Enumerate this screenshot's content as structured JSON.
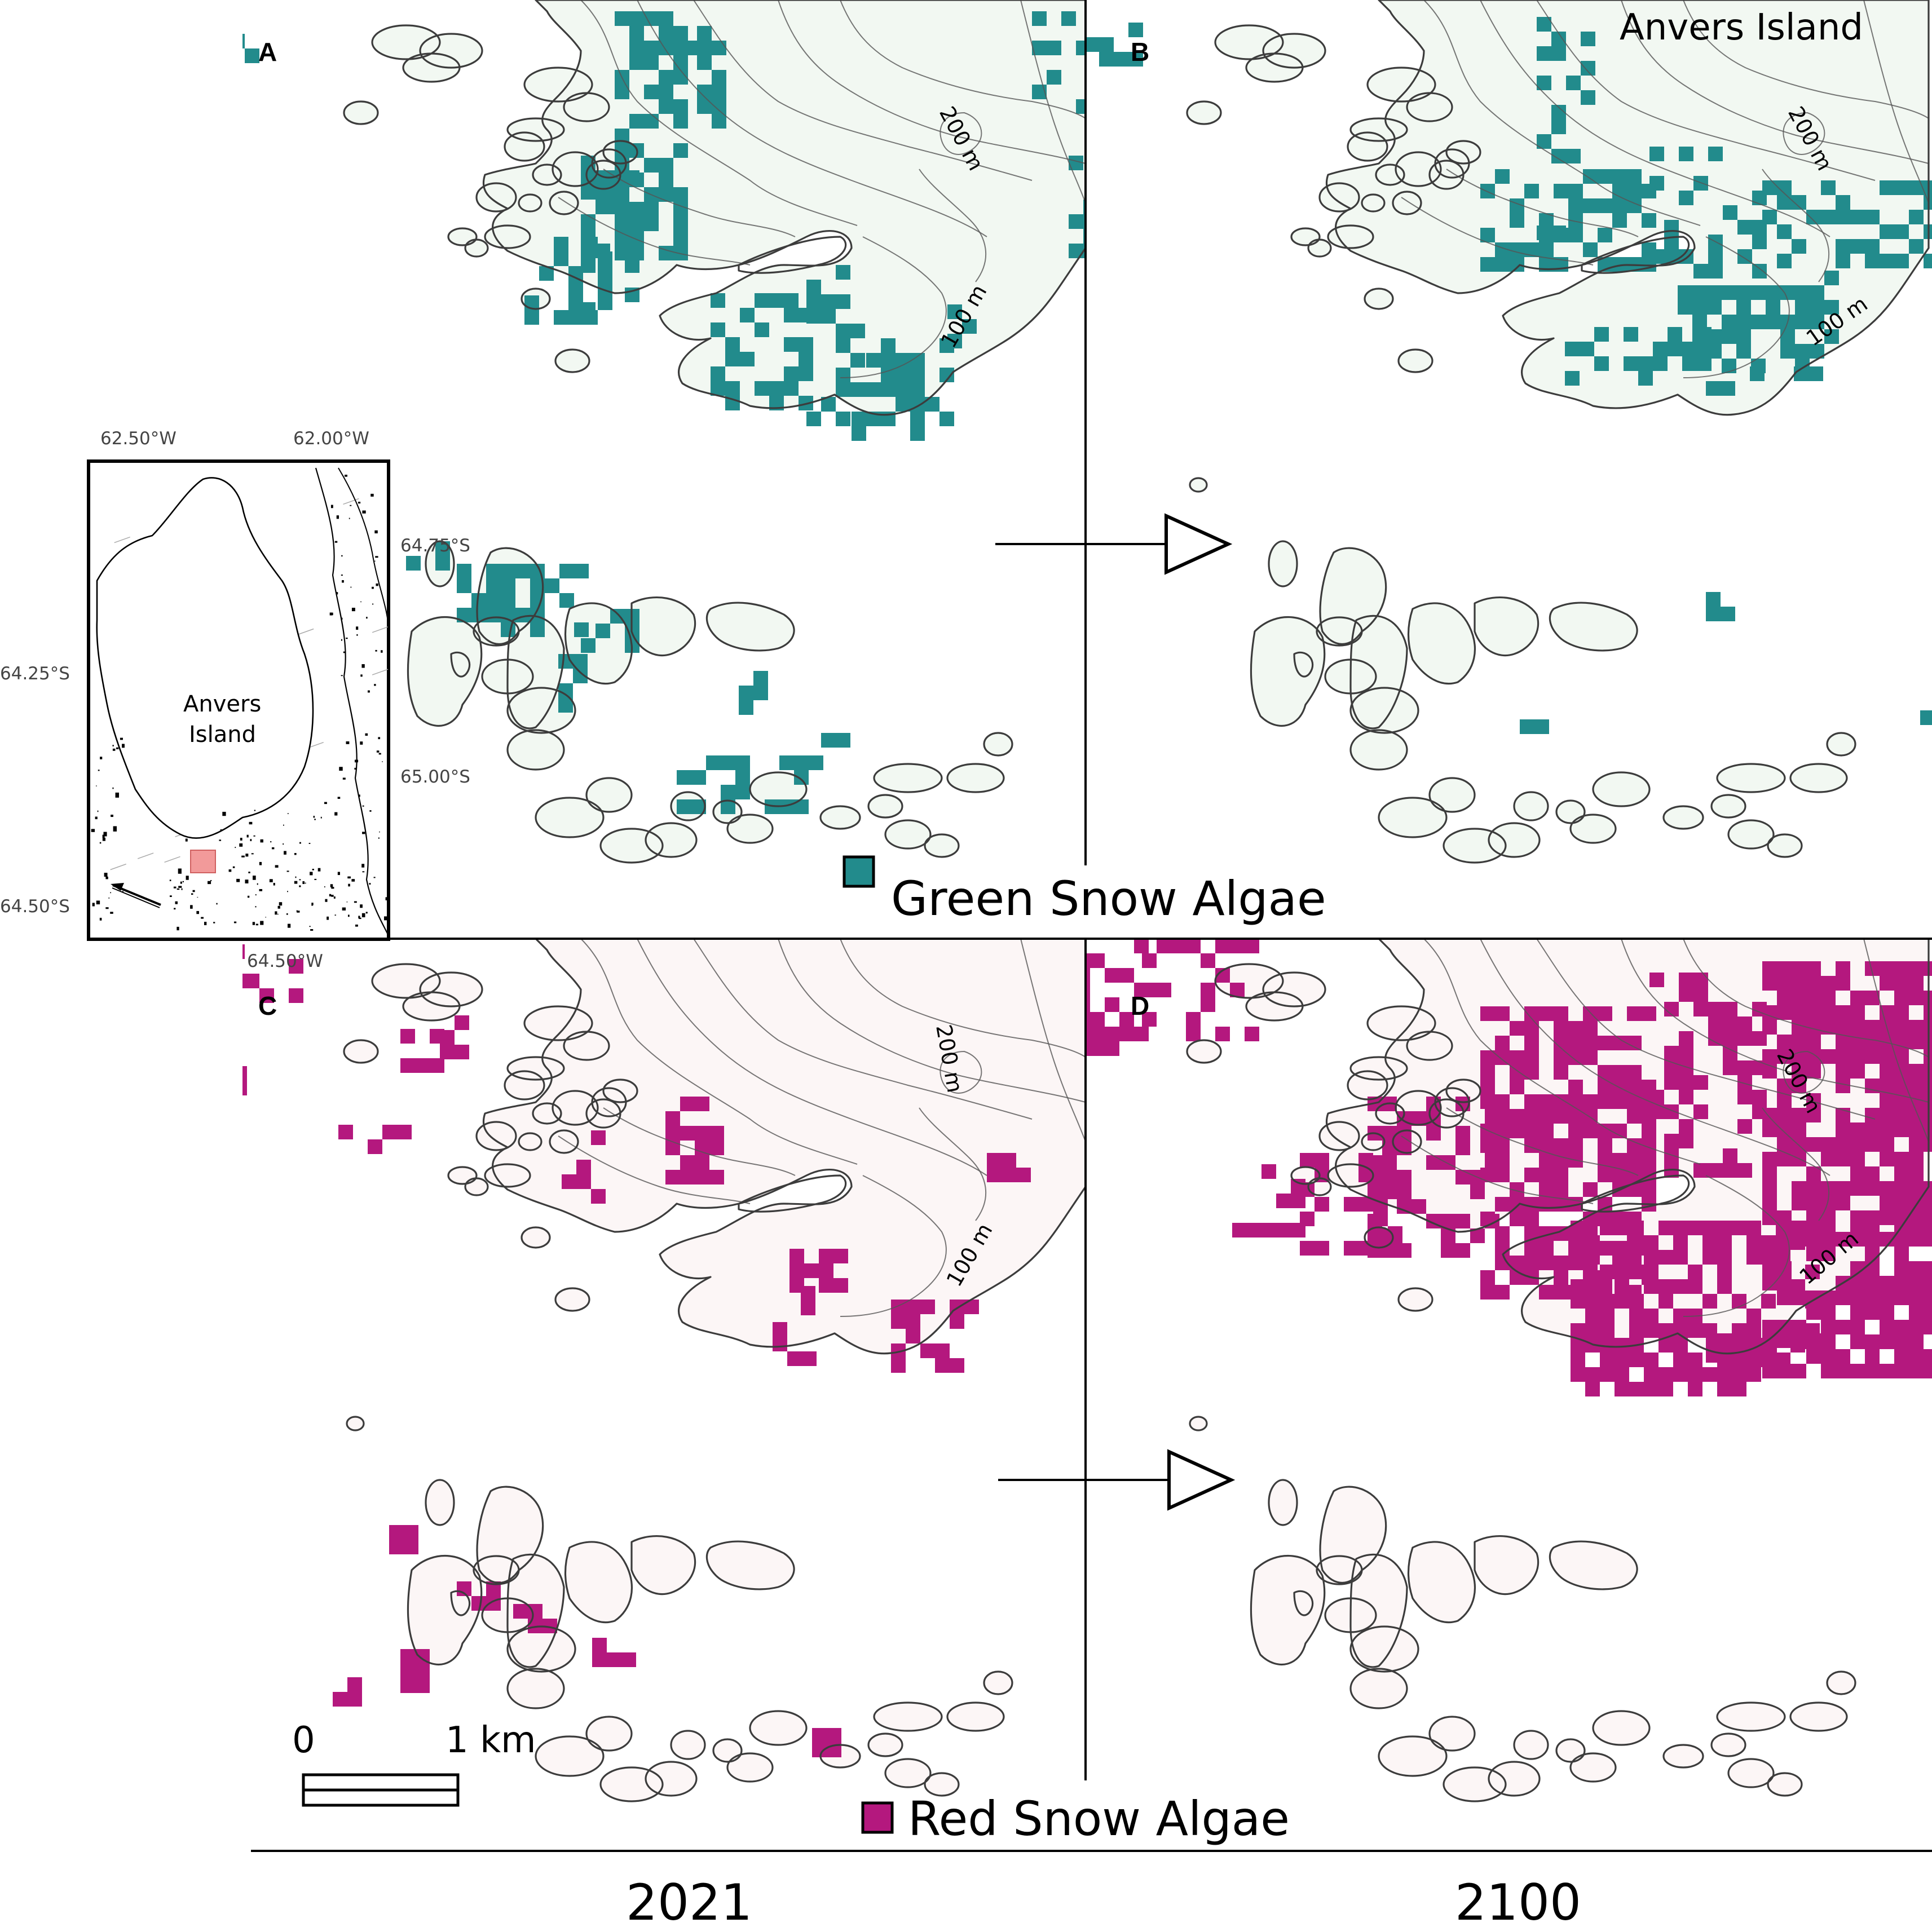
{
  "panels": {
    "A": {
      "letter": "A",
      "year": "2021",
      "algae": "green",
      "glacier_label": null
    },
    "B": {
      "letter": "B",
      "year": "2100",
      "algae": "green",
      "glacier_label": "Anvers Island"
    },
    "C": {
      "letter": "C",
      "year": "2021",
      "algae": "red",
      "glacier_label": null
    },
    "D": {
      "letter": "D",
      "year": "2100",
      "algae": "red",
      "glacier_label": null
    }
  },
  "contour_labels": [
    "200 m",
    "100 m"
  ],
  "inset": {
    "island_label_line1": "Anvers",
    "island_label_line2": "Island",
    "lon_labels_top": [
      "62.50°W",
      "62.00°W"
    ],
    "lon_labels_bottom": [
      "64.50°W"
    ],
    "lat_labels_left": [
      "64.25°S",
      "64.50°S"
    ],
    "lat_labels_right": [
      "64.75°S",
      "65.00°S"
    ]
  },
  "legend": {
    "green_label": "Green Snow Algae",
    "red_label": "Red Snow Algae"
  },
  "scale_bar": {
    "start": "0",
    "end": "1 km"
  },
  "years": {
    "left": "2021",
    "right": "2100"
  },
  "colors": {
    "green_algae": "#228b8c",
    "red_algae": "#b4187e",
    "ice_green_tint": "#f2f8f2",
    "ice_red_tint": "#fcf6f6",
    "coastline": "#3c3c3c",
    "inset_highlight": "#f29a9a"
  }
}
